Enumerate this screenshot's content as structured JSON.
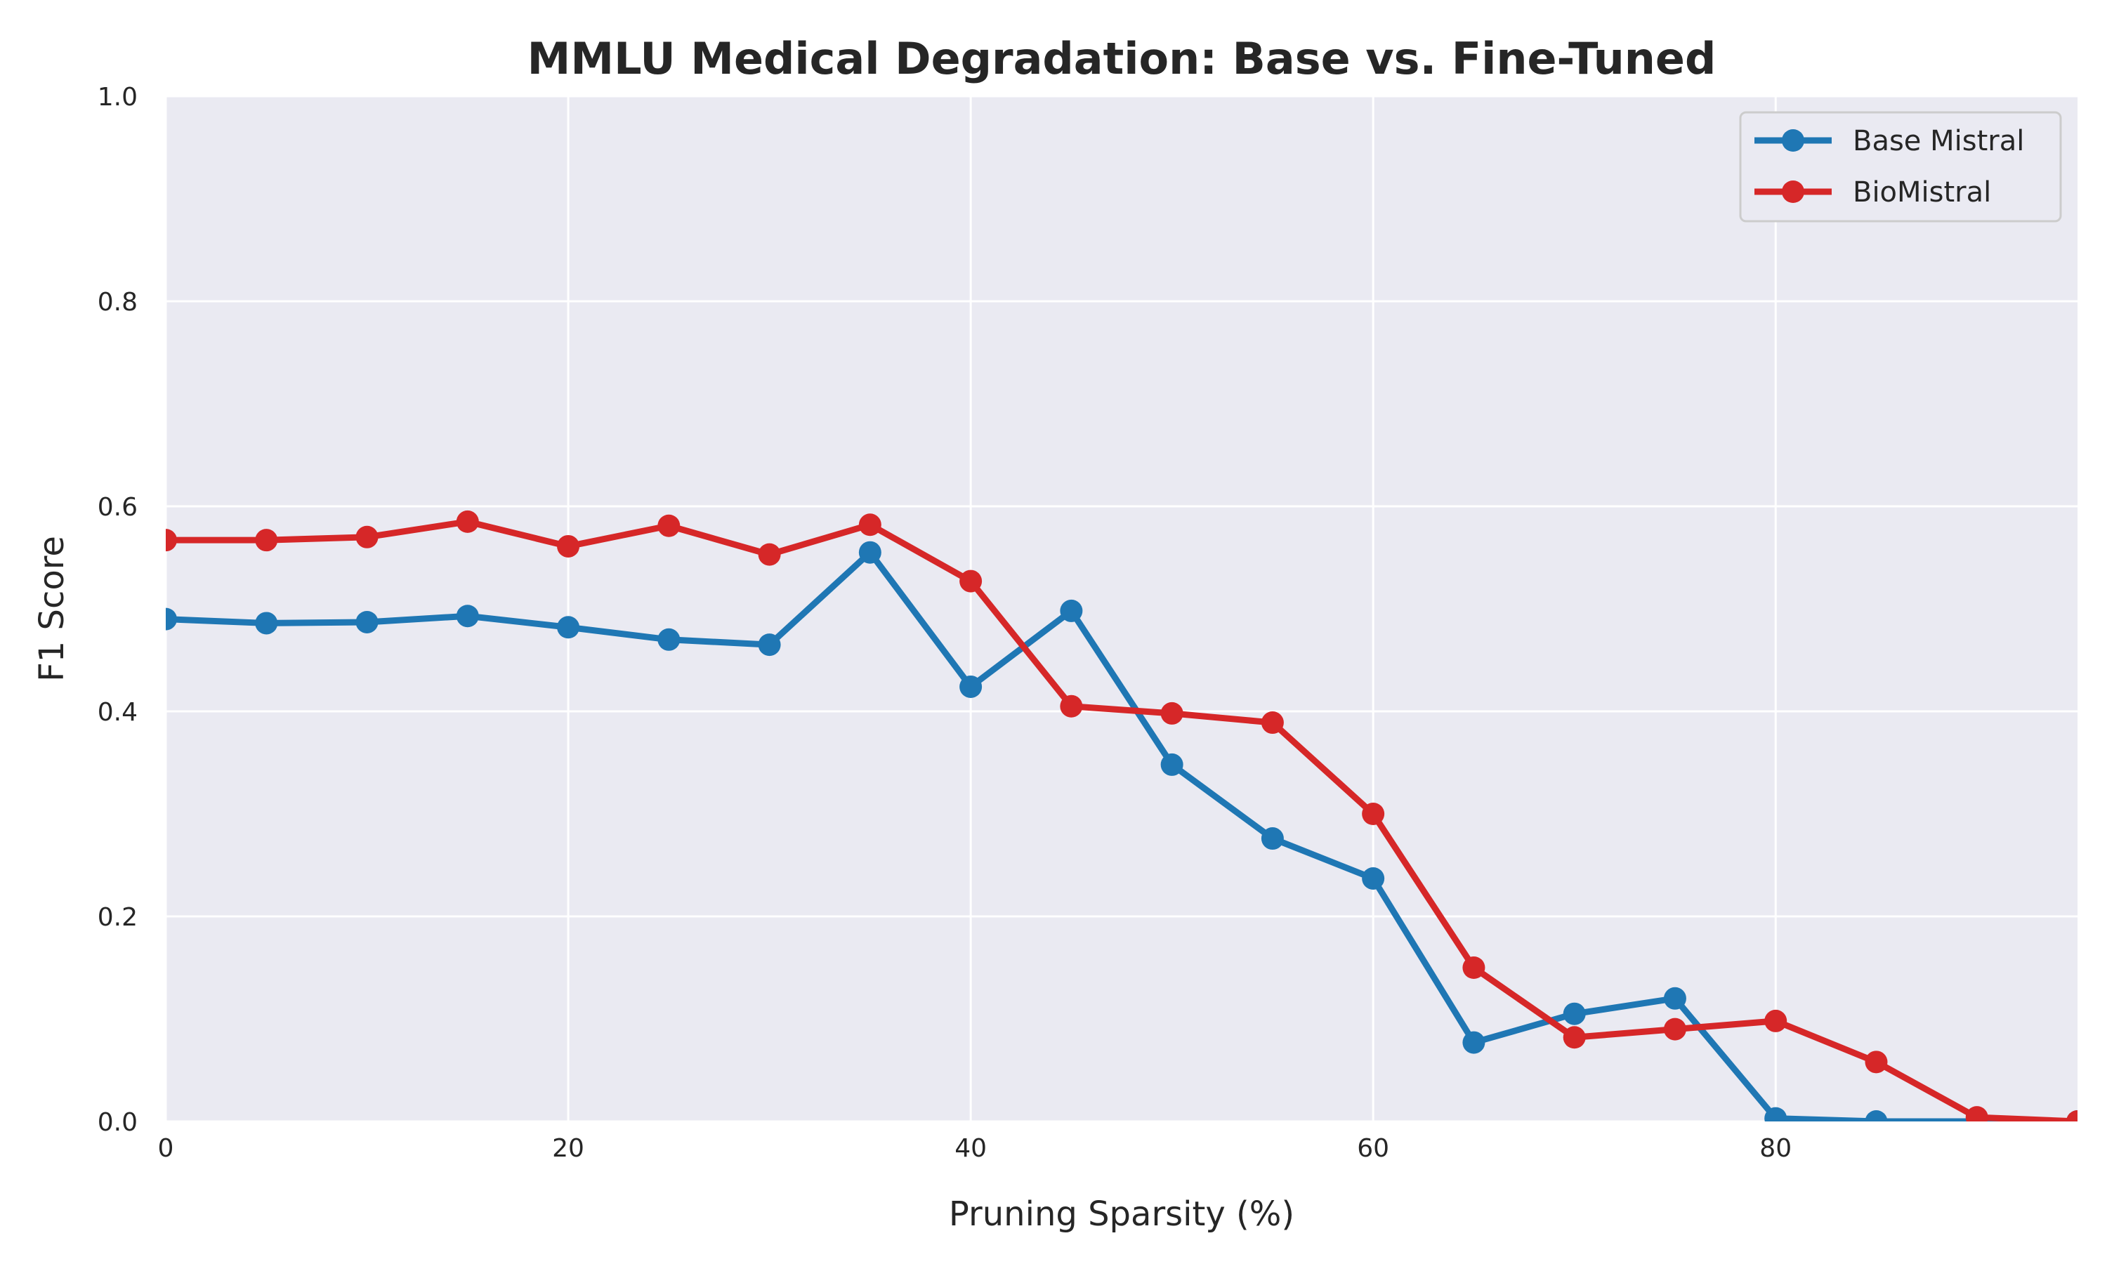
{
  "chart_data": {
    "type": "line",
    "title": "MMLU Medical Degradation: Base vs. Fine-Tuned",
    "xlabel": "Pruning Sparsity (%)",
    "ylabel": "F1 Score",
    "xlim": [
      0,
      95
    ],
    "ylim": [
      0,
      1.0
    ],
    "x_ticks": [
      0,
      20,
      40,
      60,
      80
    ],
    "y_ticks": [
      0.0,
      0.2,
      0.4,
      0.6,
      0.8,
      1.0
    ],
    "x_tick_labels": [
      "0",
      "20",
      "40",
      "60",
      "80"
    ],
    "y_tick_labels": [
      "0.0",
      "0.2",
      "0.4",
      "0.6",
      "0.8",
      "1.0"
    ],
    "grid": true,
    "legend_position": "top-right",
    "x": [
      0,
      5,
      10,
      15,
      20,
      25,
      30,
      35,
      40,
      45,
      50,
      55,
      60,
      65,
      70,
      75,
      80,
      85,
      90,
      95
    ],
    "series": [
      {
        "name": "Base Mistral",
        "color": "#1f77b4",
        "values": [
          0.49,
          0.486,
          0.487,
          0.493,
          0.482,
          0.47,
          0.465,
          0.555,
          0.424,
          0.498,
          0.348,
          0.276,
          0.237,
          0.077,
          0.105,
          0.12,
          0.003,
          0.0,
          0.0,
          0.0
        ]
      },
      {
        "name": "BioMistral",
        "color": "#d62728",
        "values": [
          0.567,
          0.567,
          0.57,
          0.585,
          0.561,
          0.581,
          0.553,
          0.582,
          0.527,
          0.405,
          0.398,
          0.389,
          0.3,
          0.15,
          0.082,
          0.09,
          0.098,
          0.058,
          0.004,
          0.0
        ]
      }
    ]
  }
}
